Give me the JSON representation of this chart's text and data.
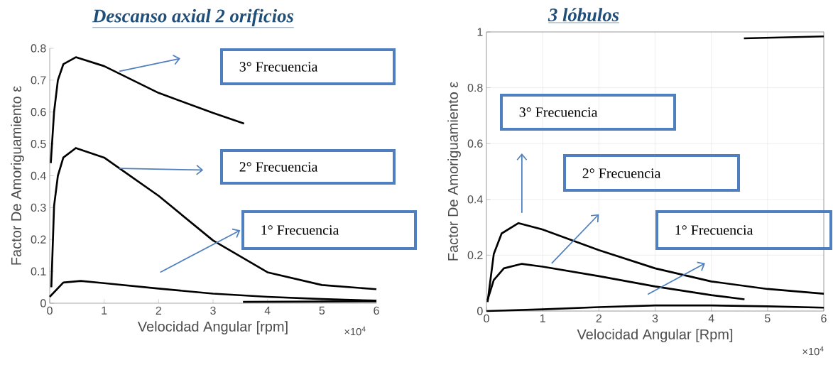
{
  "chart_data": [
    {
      "type": "line",
      "title": "Descanso axial 2 orificios",
      "xlabel": "Velocidad Angular [rpm]",
      "ylabel": "Factor De Amoriguamiento ε",
      "xlim": [
        0,
        6
      ],
      "ylim": [
        0,
        0.8
      ],
      "xticks": [
        0,
        1,
        2,
        3,
        4,
        5,
        6
      ],
      "yticks": [
        0,
        0.1,
        0.2,
        0.3,
        0.4,
        0.5,
        0.6,
        0.7,
        0.8
      ],
      "grid": false,
      "marker": "none",
      "line_style": "solid",
      "series": [
        {
          "color": "#000000",
          "x": [
            0.02,
            0.08,
            0.15,
            0.25,
            0.48,
            1,
            2,
            3,
            3.57
          ],
          "values": [
            0.44,
            0.6,
            0.7,
            0.75,
            0.772,
            0.744,
            0.66,
            0.597,
            0.564
          ]
        },
        {
          "color": "#000000",
          "x": [
            0.03,
            0.08,
            0.15,
            0.25,
            0.48,
            1,
            2,
            3,
            4,
            5,
            6
          ],
          "values": [
            0.05,
            0.305,
            0.4,
            0.457,
            0.487,
            0.457,
            0.337,
            0.197,
            0.097,
            0.057,
            0.044
          ]
        },
        {
          "color": "#000000",
          "x": [
            0,
            0.25,
            0.57,
            1,
            2,
            3,
            4,
            5,
            6
          ],
          "values": [
            0.02,
            0.065,
            0.07,
            0.063,
            0.046,
            0.03,
            0.02,
            0.013,
            0.008
          ]
        },
        {
          "color": "#000000",
          "x": [
            3.55,
            6
          ],
          "values": [
            0.004,
            0.006
          ]
        }
      ],
      "annotations": [
        "3° Frecuencia",
        "2° Frecuencia",
        "1° Frecuencia",
        "×10$^{4}$"
      ]
    },
    {
      "type": "line",
      "title": "3 lóbulos",
      "xlabel": "Velocidad Angular [Rpm]",
      "ylabel": "Factor De Amoriguamiento ε",
      "xlim": [
        0,
        6
      ],
      "ylim": [
        0,
        1
      ],
      "xticks": [
        0,
        1,
        2,
        3,
        4,
        5,
        6
      ],
      "yticks": [
        0,
        0.2,
        0.4,
        0.6,
        0.8,
        1
      ],
      "grid": true,
      "marker": "none",
      "line_style": "solid",
      "series": [
        {
          "color": "#000000",
          "x": [
            4.58,
            6
          ],
          "values": [
            0.977,
            0.984
          ]
        },
        {
          "color": "#000000",
          "x": [
            0.02,
            0.13,
            0.27,
            0.57,
            1,
            2,
            3,
            4,
            5,
            6
          ],
          "values": [
            0.032,
            0.204,
            0.278,
            0.315,
            0.292,
            0.218,
            0.153,
            0.106,
            0.079,
            0.062
          ]
        },
        {
          "color": "#000000",
          "x": [
            0.02,
            0.13,
            0.31,
            0.63,
            1,
            2,
            3,
            4,
            4.59
          ],
          "values": [
            0.04,
            0.111,
            0.153,
            0.169,
            0.159,
            0.125,
            0.088,
            0.057,
            0.042
          ]
        },
        {
          "color": "#000000",
          "x": [
            0,
            1,
            2,
            3,
            4,
            5,
            6
          ],
          "values": [
            0,
            0.006,
            0.014,
            0.02,
            0.02,
            0.017,
            0.012
          ]
        }
      ],
      "annotations": [
        "3° Frecuencia",
        "2° Frecuencia",
        "1° Frecuencia",
        "×10$^{4}$"
      ]
    }
  ]
}
